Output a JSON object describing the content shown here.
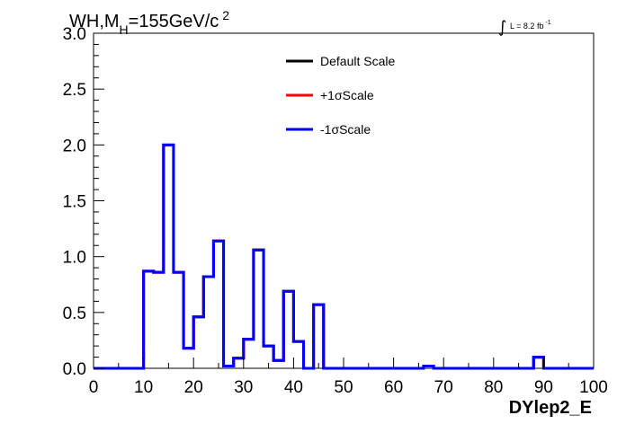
{
  "chart_data": {
    "type": "line",
    "title": {
      "process": "WH,M",
      "subscript": "H",
      "mass": "=155GeV/c",
      "exponent": "2"
    },
    "luminosity": {
      "integral_symbol": "∫",
      "text": "L = 8.2 fb",
      "exponent": "-1"
    },
    "xlabel": "DYlep2_E",
    "ylabel": "",
    "xlim": [
      0,
      100
    ],
    "ylim": [
      0,
      3.0
    ],
    "x_ticks": [
      "0",
      "10",
      "20",
      "30",
      "40",
      "50",
      "60",
      "70",
      "80",
      "90",
      "100"
    ],
    "y_ticks": [
      "0.0",
      "0.5",
      "1.0",
      "1.5",
      "2.0",
      "2.5",
      "3.0"
    ],
    "grid": false,
    "legend_position": "top-center",
    "bin_edges": [
      0,
      2,
      4,
      6,
      8,
      10,
      12,
      14,
      16,
      18,
      20,
      22,
      24,
      26,
      28,
      30,
      32,
      34,
      36,
      38,
      40,
      42,
      44,
      46,
      48,
      50,
      52,
      54,
      56,
      58,
      60,
      62,
      64,
      66,
      68,
      70,
      72,
      74,
      76,
      78,
      80,
      82,
      84,
      86,
      88,
      90,
      92,
      94,
      96,
      98,
      100
    ],
    "series": [
      {
        "name": "Default Scale",
        "color": "#000000",
        "values": [
          0,
          0,
          0,
          0,
          0,
          0.87,
          0.86,
          2.0,
          0.86,
          0.18,
          0.46,
          0.82,
          1.14,
          0.02,
          0.09,
          0.26,
          1.06,
          0.2,
          0.07,
          0.69,
          0.24,
          0,
          0.57,
          0,
          0,
          0,
          0,
          0,
          0,
          0,
          0,
          0,
          0,
          0.02,
          0,
          0,
          0,
          0,
          0,
          0,
          0,
          0,
          0,
          0,
          0.1,
          0,
          0,
          0,
          0,
          0
        ]
      },
      {
        "name": "+1σScale",
        "color": "#ff0000",
        "values": [
          0,
          0,
          0,
          0,
          0,
          0.87,
          0.86,
          2.0,
          0.86,
          0.18,
          0.46,
          0.82,
          1.14,
          0.02,
          0.09,
          0.26,
          1.06,
          0.2,
          0.07,
          0.69,
          0.24,
          0,
          0.57,
          0,
          0,
          0,
          0,
          0,
          0,
          0,
          0,
          0,
          0,
          0.02,
          0,
          0,
          0,
          0,
          0,
          0,
          0,
          0,
          0,
          0,
          0.1,
          0,
          0,
          0,
          0,
          0
        ]
      },
      {
        "name": "-1σScale",
        "color": "#0000ff",
        "values": [
          0,
          0,
          0,
          0,
          0,
          0.87,
          0.86,
          2.0,
          0.86,
          0.18,
          0.46,
          0.82,
          1.14,
          0.02,
          0.09,
          0.26,
          1.06,
          0.2,
          0.07,
          0.69,
          0.24,
          0,
          0.57,
          0,
          0,
          0,
          0,
          0,
          0,
          0,
          0,
          0,
          0,
          0.02,
          0,
          0,
          0,
          0,
          0,
          0,
          0,
          0,
          0,
          0,
          0.1,
          0,
          0,
          0,
          0,
          0
        ]
      }
    ]
  }
}
